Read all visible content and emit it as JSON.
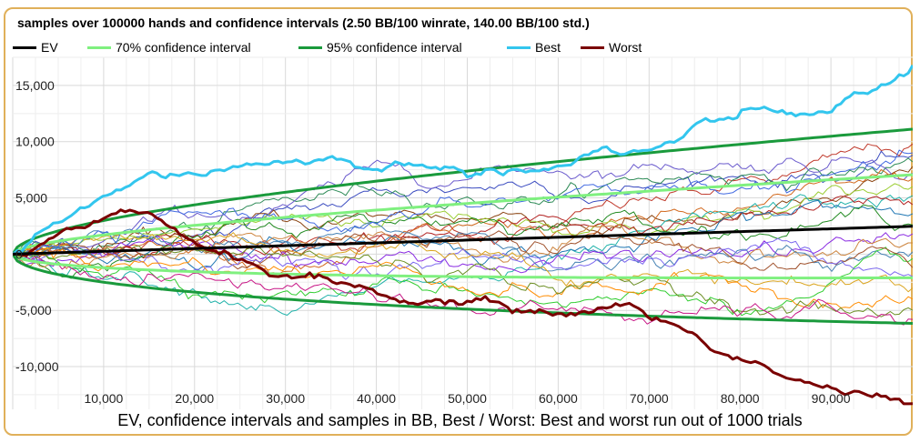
{
  "chart_data": {
    "type": "line",
    "title": "samples over 100000 hands and confidence intervals (2.50 BB/100 winrate, 140.00 BB/100 std.)",
    "caption": "EV, confidence intervals and samples in BB, Best / Worst: Best and worst run out of 1000 trials",
    "xlim": [
      0,
      99000
    ],
    "ylim": [
      -13800,
      17500
    ],
    "x_ticks": [
      10000,
      20000,
      30000,
      40000,
      50000,
      60000,
      70000,
      80000,
      90000
    ],
    "x_tick_labels": [
      "10,000",
      "20,000",
      "30,000",
      "40,000",
      "50,000",
      "60,000",
      "70,000",
      "80,000",
      "90,000"
    ],
    "y_ticks": [
      15000,
      10000,
      5000,
      0,
      -5000,
      -10000
    ],
    "y_tick_labels": [
      "15,000",
      "10,000",
      "5,000",
      "0",
      "-5,000",
      "-10,000"
    ],
    "grid": true,
    "legend_position": "top-left",
    "winrate_bb_per_100": 2.5,
    "std_bb_per_100": 140.0,
    "ci70_z": 1.04,
    "ci95_z": 1.96,
    "legend": [
      {
        "label": "EV",
        "color": "#000000"
      },
      {
        "label": "70% confidence interval",
        "color": "#7ff07f"
      },
      {
        "label": "95% confidence interval",
        "color": "#1a9a3c"
      },
      {
        "label": "Best",
        "color": "#33c6ee"
      },
      {
        "label": "Worst",
        "color": "#7a0000"
      }
    ],
    "best_anchors": {
      "x": [
        0,
        5000,
        10000,
        15000,
        20000,
        25000,
        30000,
        35000,
        38000,
        40000,
        45000,
        50000,
        55000,
        60000,
        65000,
        67000,
        70000,
        75000,
        80000,
        85000,
        88000,
        90000,
        92000,
        95000,
        98000,
        99000
      ],
      "y": [
        0,
        3000,
        4500,
        6000,
        6500,
        7500,
        8000,
        8500,
        8200,
        7500,
        8500,
        7500,
        8700,
        9000,
        10800,
        9800,
        10200,
        11800,
        12500,
        13000,
        12500,
        12200,
        13800,
        14500,
        15600,
        16800
      ]
    },
    "worst_anchors": {
      "x": [
        0,
        5000,
        10000,
        12000,
        15000,
        20000,
        25000,
        30000,
        35000,
        40000,
        45000,
        50000,
        55000,
        60000,
        65000,
        68000,
        70000,
        75000,
        78000,
        80000,
        85000,
        90000,
        95000,
        98000,
        99000
      ],
      "y": [
        0,
        1200,
        1500,
        2000,
        1000,
        -1000,
        -2200,
        -3000,
        -3800,
        -4500,
        -5500,
        -5000,
        -6200,
        -6200,
        -5500,
        -5000,
        -5800,
        -7800,
        -8800,
        -9200,
        -10300,
        -11000,
        -12000,
        -12800,
        -13300
      ]
    },
    "sample_trials": [
      {
        "color": "#c0392b",
        "end": 9800
      },
      {
        "color": "#3b4cc0",
        "end": 8800
      },
      {
        "color": "#2e8b57",
        "end": 8200
      },
      {
        "color": "#8b4513",
        "end": 7800
      },
      {
        "color": "#6a5acd",
        "end": 7200
      },
      {
        "color": "#d2691e",
        "end": 6700
      },
      {
        "color": "#9acd32",
        "end": 6000
      },
      {
        "color": "#20b2aa",
        "end": 5200
      },
      {
        "color": "#b22222",
        "end": 4400
      },
      {
        "color": "#1f77b4",
        "end": 3600
      },
      {
        "color": "#228b22",
        "end": 2600
      },
      {
        "color": "#8a2be2",
        "end": 1800
      },
      {
        "color": "#cd853f",
        "end": 1000
      },
      {
        "color": "#4682b4",
        "end": 200
      },
      {
        "color": "#32cd32",
        "end": -400
      },
      {
        "color": "#a0522d",
        "end": -1200
      },
      {
        "color": "#7b68ee",
        "end": -2000
      },
      {
        "color": "#daa520",
        "end": -3000
      },
      {
        "color": "#ff8c00",
        "end": -4000
      },
      {
        "color": "#6b8e23",
        "end": -5000
      },
      {
        "color": "#c71585",
        "end": -5800
      },
      {
        "color": "#4169e1",
        "end": 9000
      }
    ]
  }
}
